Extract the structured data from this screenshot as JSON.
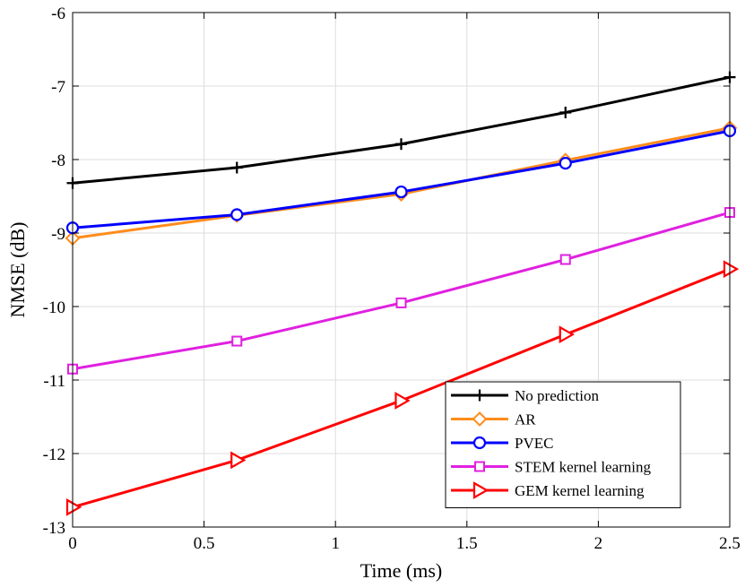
{
  "chart_data": {
    "type": "line",
    "title": "",
    "xlabel": "Time (ms)",
    "ylabel": "NMSE (dB)",
    "xlim": [
      0,
      2.5
    ],
    "ylim": [
      -13,
      -6
    ],
    "xticks": [
      0,
      0.5,
      1,
      1.5,
      2,
      2.5
    ],
    "xtick_labels": [
      "0",
      "0.5",
      "1",
      "1.5",
      "2",
      "2.5"
    ],
    "yticks": [
      -13,
      -12,
      -11,
      -10,
      -9,
      -8,
      -7,
      -6
    ],
    "ytick_labels": [
      "-13",
      "-12",
      "-11",
      "-10",
      "-9",
      "-8",
      "-7",
      "-6"
    ],
    "grid": true,
    "legend_position": "bottom-right",
    "x": [
      0,
      0.625,
      1.25,
      1.875,
      2.5
    ],
    "series": [
      {
        "name": "No prediction",
        "color": "#000000",
        "marker": "plus",
        "values": [
          -8.32,
          -8.11,
          -7.79,
          -7.36,
          -6.88
        ]
      },
      {
        "name": "AR",
        "color": "#FF8C1A",
        "marker": "diamond",
        "values": [
          -9.07,
          -8.76,
          -8.47,
          -8.01,
          -7.57
        ]
      },
      {
        "name": "PVEC",
        "color": "#0000FF",
        "marker": "circle",
        "values": [
          -8.93,
          -8.75,
          -8.44,
          -8.05,
          -7.61
        ]
      },
      {
        "name": "STEM kernel learning",
        "color": "#E020E0",
        "marker": "square",
        "values": [
          -10.85,
          -10.47,
          -9.95,
          -9.36,
          -8.72
        ]
      },
      {
        "name": "GEM kernel learning",
        "color": "#FF0000",
        "marker": "triangle-right",
        "values": [
          -12.73,
          -12.09,
          -11.28,
          -10.38,
          -9.49
        ]
      }
    ]
  }
}
